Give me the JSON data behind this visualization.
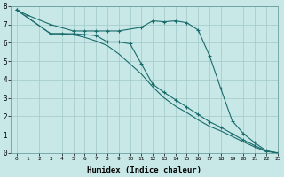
{
  "title": "",
  "xlabel": "Humidex (Indice chaleur)",
  "ylabel": "",
  "bg_color": "#c8e8e8",
  "grid_color": "#a0c8c8",
  "line_color": "#1a6b6b",
  "xlim": [
    -0.5,
    23
  ],
  "ylim": [
    0,
    8
  ],
  "line1_x": [
    0,
    1,
    3,
    5,
    6,
    7,
    8,
    9,
    11,
    12,
    13,
    14,
    15,
    16,
    17,
    18,
    19,
    20,
    21,
    22,
    23
  ],
  "line1_y": [
    7.8,
    7.5,
    7.0,
    6.65,
    6.65,
    6.65,
    6.65,
    6.65,
    6.85,
    7.2,
    7.15,
    7.2,
    7.1,
    6.7,
    5.3,
    3.5,
    1.75,
    1.05,
    0.55,
    0.12,
    0.0
  ],
  "line2_x": [
    0,
    3,
    4,
    5,
    6,
    7,
    8,
    9,
    10,
    11,
    12,
    13,
    14,
    15,
    16,
    17,
    18,
    19,
    20,
    21,
    22,
    23
  ],
  "line2_y": [
    7.8,
    6.5,
    6.5,
    6.5,
    6.45,
    6.4,
    6.05,
    6.05,
    5.95,
    4.85,
    3.75,
    3.3,
    2.9,
    2.5,
    2.1,
    1.7,
    1.4,
    1.05,
    0.7,
    0.4,
    0.1,
    0.0
  ],
  "line3_x": [
    0,
    3,
    4,
    5,
    6,
    7,
    8,
    9,
    10,
    11,
    12,
    13,
    14,
    15,
    16,
    17,
    18,
    19,
    20,
    21,
    22,
    23
  ],
  "line3_y": [
    7.8,
    6.5,
    6.5,
    6.45,
    6.3,
    6.1,
    5.85,
    5.4,
    4.85,
    4.3,
    3.6,
    3.0,
    2.55,
    2.2,
    1.8,
    1.45,
    1.2,
    0.9,
    0.6,
    0.32,
    0.08,
    0.0
  ],
  "xtick_labels": [
    "0",
    "1",
    "2",
    "3",
    "4",
    "5",
    "6",
    "7",
    "8",
    "9",
    "10",
    "11",
    "12",
    "13",
    "14",
    "15",
    "16",
    "17",
    "18",
    "19",
    "20",
    "21",
    "22",
    "23"
  ]
}
